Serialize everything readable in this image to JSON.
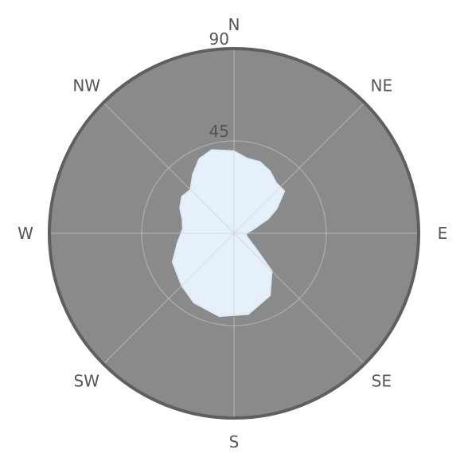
{
  "chart_data": {
    "type": "polar-area",
    "directions": [
      "N",
      "NE",
      "E",
      "SE",
      "S",
      "SW",
      "W",
      "NW"
    ],
    "ring_labels": [
      {
        "text": "45",
        "value": 45
      },
      {
        "text": "90",
        "value": 90
      }
    ],
    "radial_range": [
      90,
      0
    ],
    "grid": true,
    "series": [
      {
        "points": [
          {
            "az": 0,
            "el": 40
          },
          {
            "az": 10,
            "el": 37
          },
          {
            "az": 20,
            "el": 37
          },
          {
            "az": 30,
            "el": 35
          },
          {
            "az": 40,
            "el": 32
          },
          {
            "az": 50,
            "el": 32
          },
          {
            "az": 60,
            "el": 24
          },
          {
            "az": 67,
            "el": 18
          },
          {
            "az": 77,
            "el": 10
          },
          {
            "az": 90,
            "el": 6
          },
          {
            "az": 100,
            "el": 6
          },
          {
            "az": 113,
            "el": 8
          },
          {
            "az": 125,
            "el": 13
          },
          {
            "az": 135,
            "el": 26
          },
          {
            "az": 150,
            "el": 35
          },
          {
            "az": 170,
            "el": 40
          },
          {
            "az": 190,
            "el": 41
          },
          {
            "az": 210,
            "el": 39
          },
          {
            "az": 225,
            "el": 36
          },
          {
            "az": 245,
            "el": 33
          },
          {
            "az": 260,
            "el": 28
          },
          {
            "az": 275,
            "el": 25
          },
          {
            "az": 285,
            "el": 26
          },
          {
            "az": 295,
            "el": 29
          },
          {
            "az": 305,
            "el": 31
          },
          {
            "az": 315,
            "el": 30
          },
          {
            "az": 325,
            "el": 35
          },
          {
            "az": 335,
            "el": 40
          },
          {
            "az": 345,
            "el": 42
          }
        ],
        "fill_color": "#e6f0fa",
        "stroke_color": "#ddeaf7"
      }
    ],
    "background_color": "#8a8a8a",
    "outer_ring_color": "#5f5f5f",
    "grid_color": "#cccccc",
    "label_color": "#555555"
  }
}
